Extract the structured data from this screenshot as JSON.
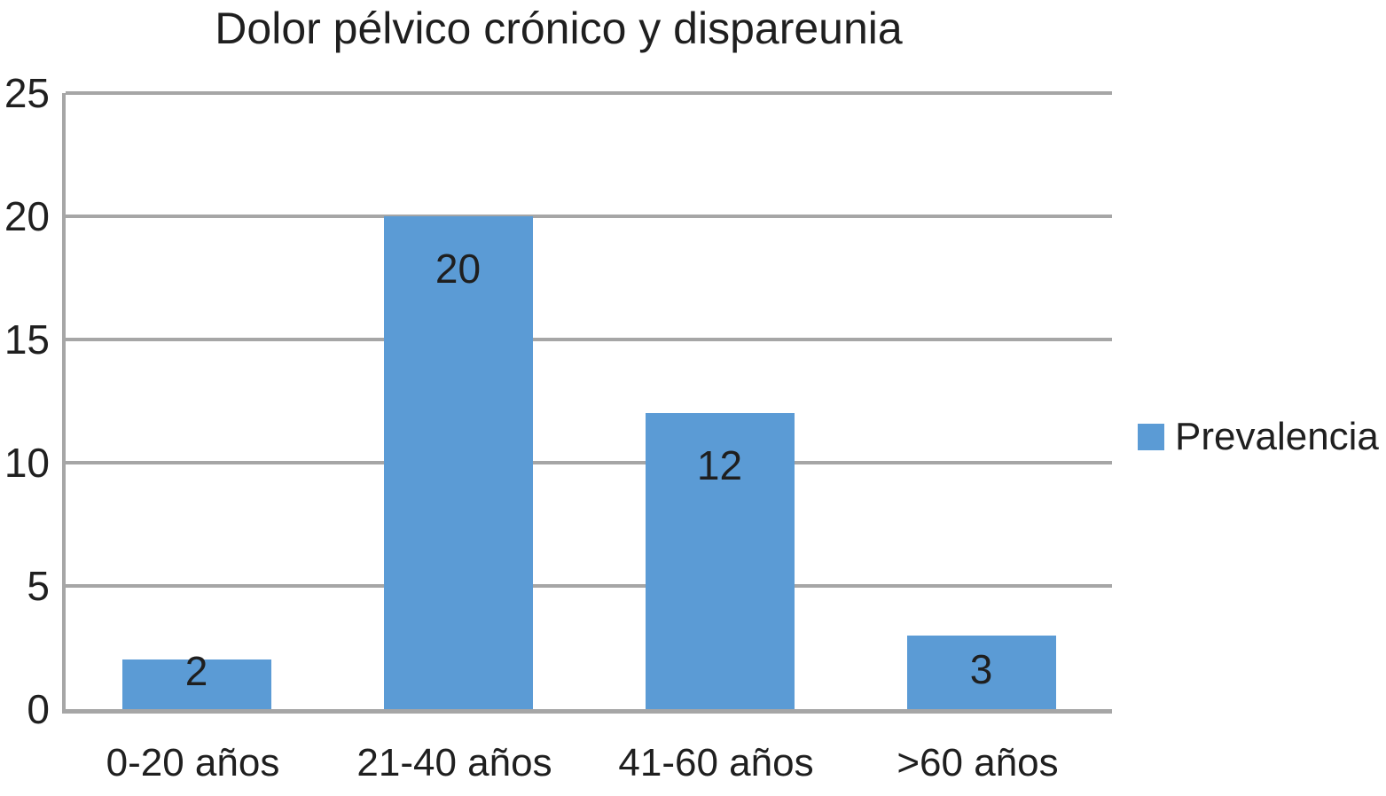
{
  "chart_data": {
    "type": "bar",
    "title": "Dolor pélvico crónico y dispareunia",
    "categories": [
      "0-20 años",
      "21-40 años",
      "41-60 años",
      ">60 años"
    ],
    "series": [
      {
        "name": "Prevalencia",
        "color": "#5B9BD5",
        "values": [
          2,
          20,
          12,
          3
        ]
      }
    ],
    "data_labels": [
      "2",
      "20",
      "12",
      "3"
    ],
    "xlabel": "",
    "ylabel": "",
    "ylim": [
      0,
      25
    ],
    "yticks": [
      0,
      5,
      10,
      15,
      20,
      25
    ],
    "grid": "horizontal",
    "legend_position": "right",
    "colors": {
      "bar": "#5B9BD5",
      "gridline": "#A6A6A6",
      "axis": "#A6A6A6",
      "text": "#1F1F1F",
      "background": "#FFFFFF"
    }
  }
}
